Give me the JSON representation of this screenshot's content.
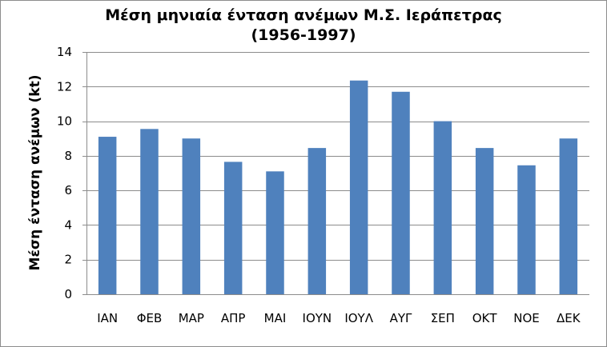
{
  "chart_data": {
    "type": "bar",
    "title_line1": "Μέση μηνιαία ένταση ανέμων Μ.Σ. Ιεράπετρας",
    "title_line2": "(1956-1997)",
    "xlabel": "",
    "ylabel": "Μέση ένταση ανέμων (kt)",
    "categories": [
      "ΙΑΝ",
      "ΦΕΒ",
      "ΜΑΡ",
      "ΑΠΡ",
      "ΜΑΙ",
      "ΙΟΥΝ",
      "ΙΟΥΛ",
      "ΑΥΓ",
      "ΣΕΠ",
      "ΟΚΤ",
      "ΝΟΕ",
      "ΔΕΚ"
    ],
    "values": [
      9.1,
      9.55,
      9.0,
      7.65,
      7.1,
      8.45,
      12.35,
      11.7,
      10.0,
      8.45,
      7.45,
      9.0
    ],
    "ylim": [
      0,
      14
    ],
    "yticks": [
      0,
      2,
      4,
      6,
      8,
      10,
      12,
      14
    ],
    "grid": true,
    "legend": "none",
    "bar_color": "#4f81bd",
    "grid_color": "#8c8c8c",
    "axis_color": "#8c8c8c"
  }
}
